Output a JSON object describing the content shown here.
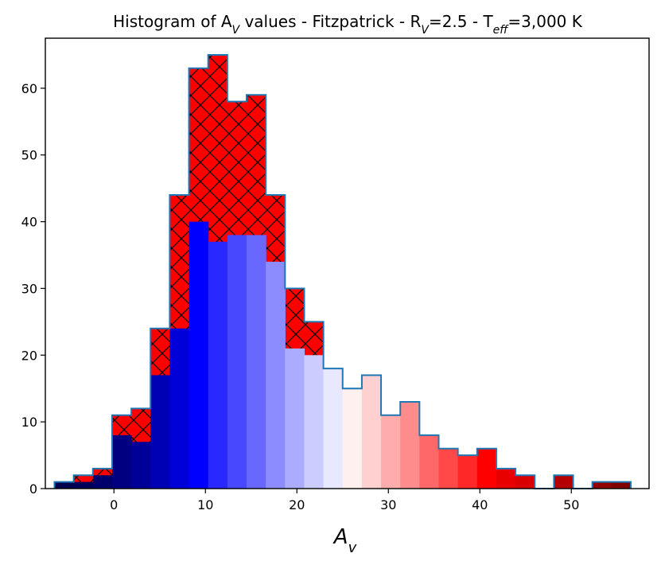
{
  "chart_data": {
    "type": "bar",
    "title": "Histogram of AV values - Fitzpatrick - RV=2.5 - Teff=3,000 K",
    "title_parts": {
      "p1": "Histogram of A",
      "s1": "V",
      "p2": " values - Fitzpatrick - R",
      "s2": "V",
      "p3": "=2.5 - T",
      "s3": "eff",
      "p4": "=3,000 K"
    },
    "xlabel": "A",
    "xlabel_sub": "v",
    "ylabel": "",
    "xlim": [
      -7.5,
      58.5
    ],
    "ylim": [
      0,
      67.5
    ],
    "xticks": [
      0,
      10,
      20,
      30,
      40,
      50
    ],
    "yticks": [
      0,
      10,
      20,
      30,
      40,
      50,
      60
    ],
    "grid": false,
    "bin_edges": [
      -6.5,
      -4.4,
      -2.3,
      -0.2,
      1.9,
      4.0,
      6.1,
      8.2,
      10.3,
      12.4,
      14.5,
      16.6,
      18.7,
      20.8,
      22.9,
      25.0,
      27.1,
      29.2,
      31.3,
      33.4,
      35.5,
      37.6,
      39.7,
      41.8,
      43.9,
      46.0,
      48.1,
      50.2,
      52.3,
      54.4,
      56.5
    ],
    "series": [
      {
        "values": [
          1,
          2,
          3,
          11,
          12,
          24,
          44,
          63,
          65,
          58,
          59,
          44,
          30,
          25,
          18,
          15,
          17,
          11,
          13,
          8,
          6,
          5,
          6,
          3,
          2,
          0,
          2,
          0,
          1,
          1
        ],
        "fill": "#ff0000",
        "hatch": "x",
        "edgecolor": "#1f77b4"
      },
      {
        "values": [
          1,
          1,
          2,
          8,
          7,
          17,
          24,
          40,
          37,
          38,
          38,
          34,
          21,
          20,
          18,
          15,
          17,
          11,
          13,
          8,
          6,
          5,
          6,
          3,
          2,
          0,
          2,
          0,
          1,
          1
        ],
        "colormap": "seismic",
        "colors": [
          "#00004c",
          "#000058",
          "#00006c",
          "#000080",
          "#000098",
          "#0000b4",
          "#0000d8",
          "#0000ff",
          "#2828ff",
          "#4848ff",
          "#6868ff",
          "#8c8cff",
          "#acacff",
          "#ccccff",
          "#e8e8ff",
          "#fff0f0",
          "#ffd0d0",
          "#ffacac",
          "#ff8c8c",
          "#ff6868",
          "#ff4848",
          "#ff2828",
          "#ff0000",
          "#e80000",
          "#d80000",
          "#c80000",
          "#b40000",
          "#a00000",
          "#900000",
          "#800000"
        ]
      }
    ]
  }
}
